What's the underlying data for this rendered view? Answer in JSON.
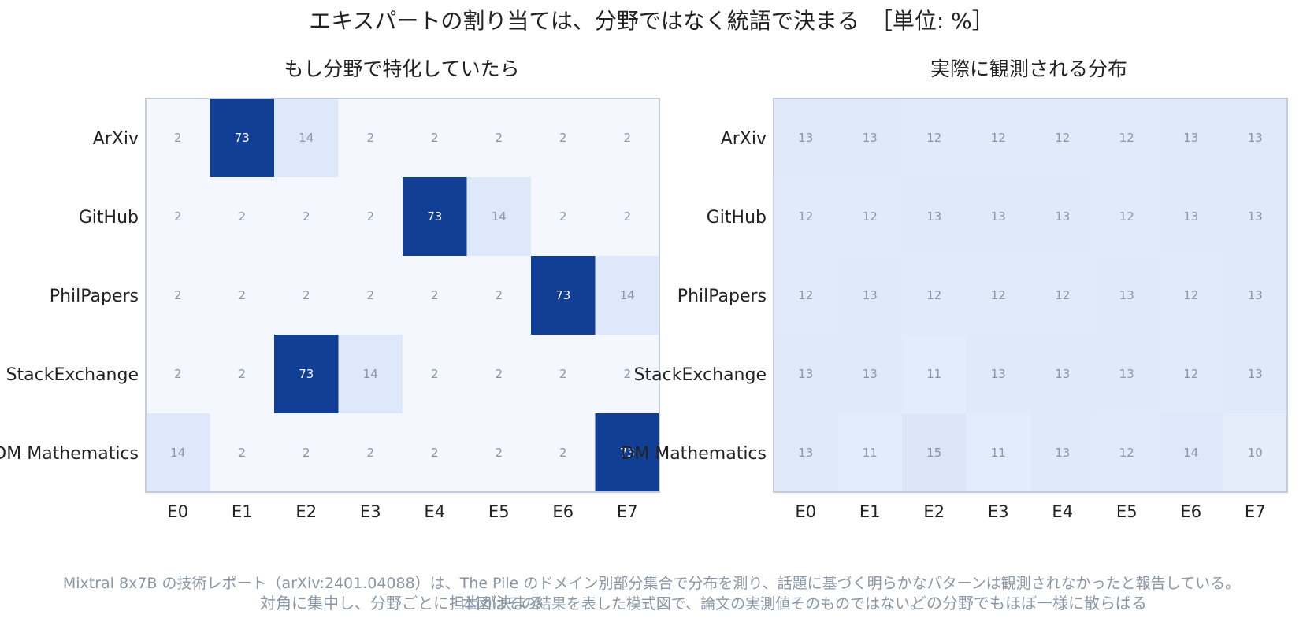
{
  "title": "エキスパートの割り当ては、分野ではなく統語で決まる　［単位: %］",
  "footnote_1": "Mixtral 8x7B の技術レポート（arXiv:2401.04088）は、The Pile のドメイン別部分集合で分布を測り、話題に基づく明らかなパターンは観測されなかったと報告している。",
  "footnote_2": "本図はその結果を表した模式図で、論文の実測値そのものではない。",
  "caption_left": "対角に集中し、分野ごとに担当が決まる",
  "caption_right": "どの分野でもほぼ一様に散らばる",
  "colors": {
    "title": "#222222",
    "low": "#f8fafd",
    "mid": "#dce7fa",
    "high": "#123f96",
    "border": "#c3ccd8",
    "cell_text_dark": "#8a96a6",
    "cell_text_light": "#ffffff",
    "footnote": "#8a96a6"
  },
  "chart_data": [
    {
      "type": "heatmap",
      "title": "もし分野で特化していたら",
      "rows": [
        "ArXiv",
        "GitHub",
        "PhilPapers",
        "StackExchange",
        "DM Mathematics"
      ],
      "columns": [
        "E0",
        "E1",
        "E2",
        "E3",
        "E4",
        "E5",
        "E6",
        "E7"
      ],
      "values": [
        [
          2,
          73,
          14,
          2,
          2,
          2,
          2,
          2
        ],
        [
          2,
          2,
          2,
          2,
          73,
          14,
          2,
          2
        ],
        [
          2,
          2,
          2,
          2,
          2,
          2,
          73,
          14
        ],
        [
          2,
          2,
          73,
          14,
          2,
          2,
          2,
          2
        ],
        [
          14,
          2,
          2,
          2,
          2,
          2,
          2,
          73
        ]
      ],
      "unit": "%"
    },
    {
      "type": "heatmap",
      "title": "実際に観測される分布",
      "rows": [
        "ArXiv",
        "GitHub",
        "PhilPapers",
        "StackExchange",
        "DM Mathematics"
      ],
      "columns": [
        "E0",
        "E1",
        "E2",
        "E3",
        "E4",
        "E5",
        "E6",
        "E7"
      ],
      "values": [
        [
          13,
          13,
          12,
          12,
          12,
          12,
          13,
          13
        ],
        [
          12,
          12,
          13,
          13,
          13,
          12,
          13,
          13
        ],
        [
          12,
          13,
          12,
          12,
          12,
          13,
          12,
          13
        ],
        [
          13,
          13,
          11,
          13,
          13,
          13,
          12,
          13
        ],
        [
          13,
          11,
          15,
          11,
          13,
          12,
          14,
          10
        ]
      ],
      "unit": "%"
    }
  ]
}
